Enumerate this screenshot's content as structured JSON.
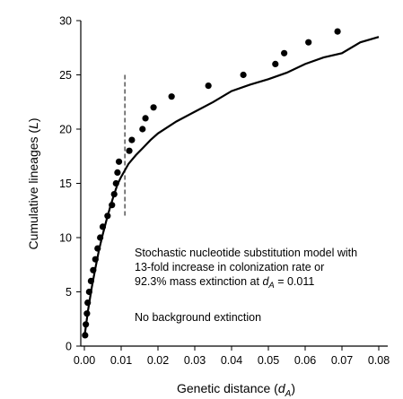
{
  "chart_data": {
    "type": "scatter",
    "title": "",
    "xlabel": "Genetic distance (d_A)",
    "xlabel_parts": {
      "main": "Genetic distance (",
      "italic": "d",
      "sub": "A",
      "close": ")"
    },
    "ylabel": "Cumulative lineages (L)",
    "ylabel_parts": {
      "main": "Cumulative lineages (",
      "italic": "L",
      "close": ")"
    },
    "xlim": [
      0.0,
      0.08
    ],
    "ylim": [
      0,
      30
    ],
    "x_ticks": [
      0.0,
      0.01,
      0.02,
      0.03,
      0.04,
      0.05,
      0.06,
      0.07,
      0.08
    ],
    "x_tick_labels": [
      "0.00",
      "0.01",
      "0.02",
      "0.03",
      "0.04",
      "0.05",
      "0.06",
      "0.07",
      "0.08"
    ],
    "y_ticks": [
      0,
      5,
      10,
      15,
      20,
      25,
      30
    ],
    "y_tick_labels": [
      "0",
      "5",
      "10",
      "15",
      "20",
      "25",
      "30"
    ],
    "grid": false,
    "series": [
      {
        "kind": "points",
        "x": [
          0.0002,
          0.0004,
          0.0007,
          0.0009,
          0.0013,
          0.0018,
          0.0024,
          0.003,
          0.0036,
          0.0043,
          0.005,
          0.0063,
          0.0075,
          0.0081,
          0.0086,
          0.009,
          0.0094,
          0.0122,
          0.0129,
          0.0158,
          0.0166,
          0.0188,
          0.0237,
          0.0337,
          0.0432,
          0.0519,
          0.0543,
          0.0609,
          0.0688
        ],
        "y": [
          1,
          2,
          3,
          4,
          5,
          6,
          7,
          8,
          9,
          10,
          11,
          12,
          13,
          14,
          15,
          16,
          17,
          18,
          19,
          20,
          21,
          22,
          23,
          24,
          25,
          26,
          27,
          28,
          29
        ]
      },
      {
        "kind": "line",
        "x": [
          0.0,
          0.001,
          0.002,
          0.003,
          0.004,
          0.005,
          0.006,
          0.007,
          0.008,
          0.009,
          0.01,
          0.011,
          0.012,
          0.014,
          0.016,
          0.018,
          0.02,
          0.025,
          0.03,
          0.035,
          0.04,
          0.045,
          0.05,
          0.055,
          0.06,
          0.065,
          0.07,
          0.075,
          0.08
        ],
        "y": [
          0.8,
          3.3,
          5.4,
          7.2,
          8.9,
          10.3,
          11.6,
          12.8,
          13.9,
          14.9,
          15.6,
          16.2,
          16.8,
          17.6,
          18.3,
          19.0,
          19.6,
          20.7,
          21.6,
          22.5,
          23.5,
          24.1,
          24.6,
          25.2,
          26.0,
          26.6,
          27.0,
          28.0,
          28.5
        ]
      }
    ],
    "reference_line": {
      "x": 0.011,
      "ymin": 12,
      "ymax": 25,
      "style": "dashed"
    },
    "annotations": {
      "model_line_1": "Stochastic nucleotide substitution model with",
      "model_line_2": "13-fold increase in colonization rate or",
      "model_line_3_prefix": "92.3% mass extinction at ",
      "model_line_3_var": "d",
      "model_line_3_sub": "A",
      "model_line_3_suffix": " = 0.011",
      "extinction_note": "No background extinction"
    }
  }
}
